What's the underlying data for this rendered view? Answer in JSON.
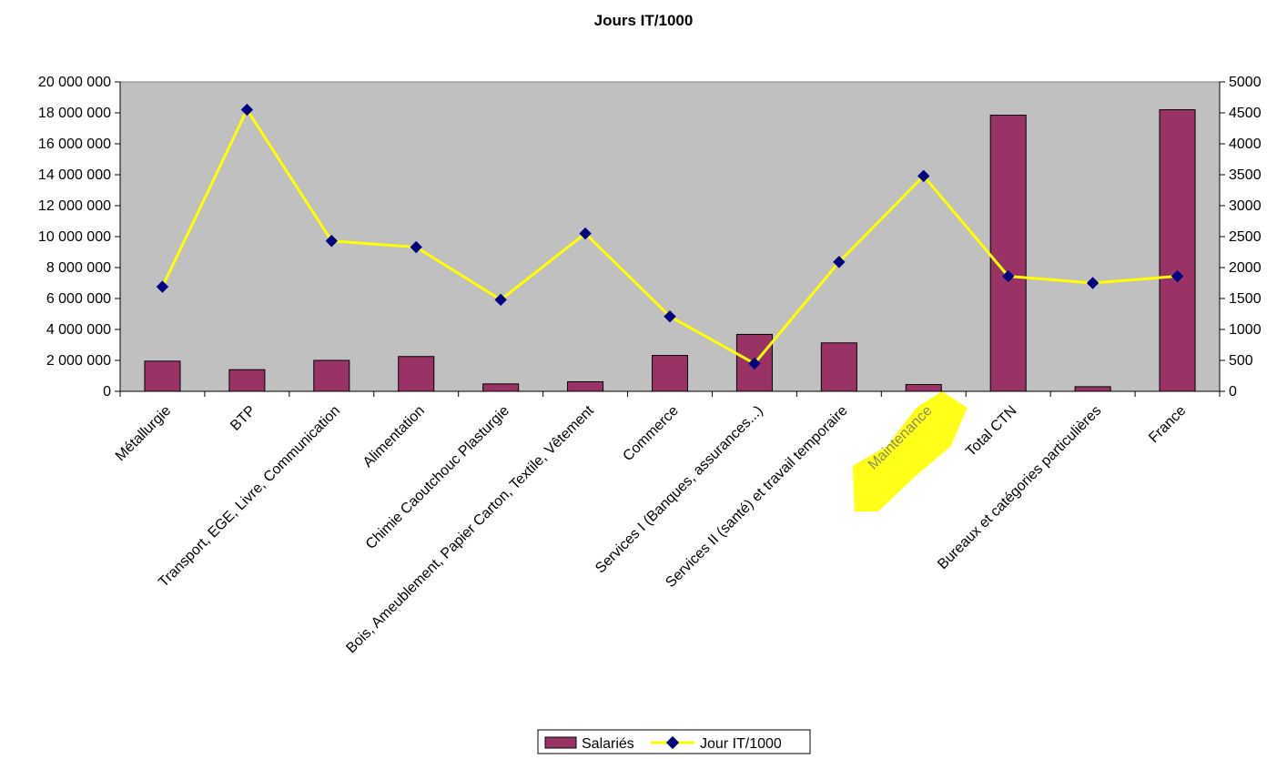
{
  "chart_data": {
    "type": "bar",
    "title": "Jours IT/1000",
    "categories": [
      "Métallurgie",
      "BTP",
      "Transport, EGE, Livre, Communication",
      "Alimentation",
      "Chimie Caoutchouc Plasturgie",
      "Bois, Ameublement, Papier Carton, Textile, Vêtement",
      "Commerce",
      "Services I (Banques, assurances...)",
      "Services II (santé) et travail temporaire",
      "Maintenance",
      "Total CTN",
      "Bureaux et catégories particulières",
      "France"
    ],
    "series": [
      {
        "name": "Salariés",
        "type": "bar",
        "axis": "left",
        "color": "#993366",
        "values": [
          1950000,
          1400000,
          2000000,
          2250000,
          480000,
          620000,
          2320000,
          3680000,
          3130000,
          440000,
          17850000,
          300000,
          18200000
        ]
      },
      {
        "name": "Jour IT/1000",
        "type": "line",
        "axis": "right",
        "color": "#FFFF00",
        "marker_color": "#000080",
        "values": [
          1690,
          4550,
          2430,
          2330,
          1480,
          2550,
          1210,
          450,
          2090,
          3480,
          1860,
          1750,
          1860
        ]
      }
    ],
    "y_left": {
      "min": 0,
      "max": 20000000,
      "step": 2000000
    },
    "y_right": {
      "min": 0,
      "max": 5000,
      "step": 500
    },
    "y_left_ticks": [
      "0",
      "2 000 000",
      "4 000 000",
      "6 000 000",
      "8 000 000",
      "10 000 000",
      "12 000 000",
      "14 000 000",
      "16 000 000",
      "18 000 000",
      "20 000 000"
    ],
    "y_right_ticks": [
      "0",
      "500",
      "1000",
      "1500",
      "2000",
      "2500",
      "3000",
      "3500",
      "4000",
      "4500",
      "5000"
    ],
    "plot_background": "#C0C0C0",
    "highlighted_category": "Maintenance",
    "highlight_color": "#FFFF00",
    "legend_position": "bottom"
  }
}
